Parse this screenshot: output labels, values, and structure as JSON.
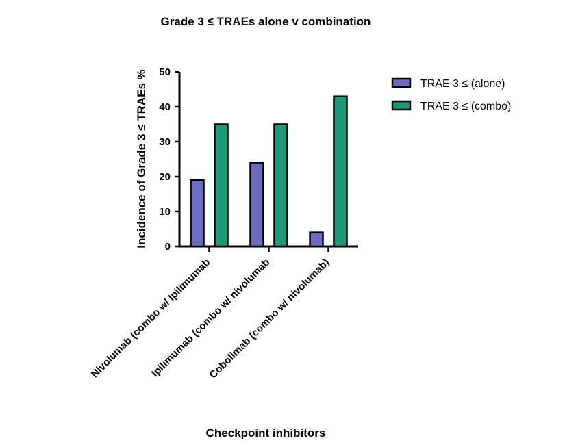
{
  "chart_data": {
    "type": "bar",
    "title": "Grade 3 ≤ TRAEs alone v combination",
    "xlabel": "Checkpoint inhibitors",
    "ylabel": "Incidence of Grade 3 ≤ TRAEs %",
    "categories": [
      "Nivolumab (combo w/ Ipilimumab",
      "Ipilimumab (combo w/ nivolumab",
      "Cobolimab (combo w/ nivolumab)"
    ],
    "series": [
      {
        "name": "TRAE 3 ≤ (alone)",
        "values": [
          19,
          24,
          4
        ],
        "color": "#6b6bc4"
      },
      {
        "name": "TRAE 3 ≤ (combo)",
        "values": [
          35,
          35,
          43
        ],
        "color": "#1a9a79"
      }
    ],
    "ylim": [
      0,
      50
    ],
    "yticks": [
      0,
      10,
      20,
      30,
      40,
      50
    ],
    "legend_position": "top-right",
    "grid": false
  }
}
